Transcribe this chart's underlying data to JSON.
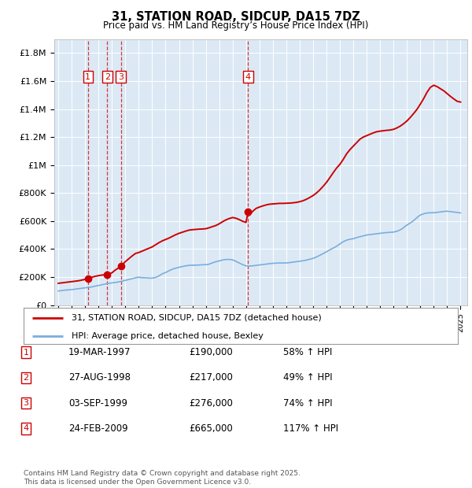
{
  "title": "31, STATION ROAD, SIDCUP, DA15 7DZ",
  "subtitle": "Price paid vs. HM Land Registry’s House Price Index (HPI)",
  "plot_background": "#dce9f5",
  "hpi_line_color": "#7aaedc",
  "price_line_color": "#cc0000",
  "transaction_dates": [
    1997.21,
    1998.65,
    1999.67,
    2009.15
  ],
  "transaction_prices": [
    190000,
    217000,
    276000,
    665000
  ],
  "transaction_labels": [
    "1",
    "2",
    "3",
    "4"
  ],
  "legend_entry1": "31, STATION ROAD, SIDCUP, DA15 7DZ (detached house)",
  "legend_entry2": "HPI: Average price, detached house, Bexley",
  "table_rows": [
    [
      "1",
      "19-MAR-1997",
      "£190,000",
      "58% ↑ HPI"
    ],
    [
      "2",
      "27-AUG-1998",
      "£217,000",
      "49% ↑ HPI"
    ],
    [
      "3",
      "03-SEP-1999",
      "£276,000",
      "74% ↑ HPI"
    ],
    [
      "4",
      "24-FEB-2009",
      "£665,000",
      "117% ↑ HPI"
    ]
  ],
  "footnote": "Contains HM Land Registry data © Crown copyright and database right 2025.\nThis data is licensed under the Open Government Licence v3.0.",
  "ylim": [
    0,
    1900000
  ],
  "yticks": [
    0,
    200000,
    400000,
    600000,
    800000,
    1000000,
    1200000,
    1400000,
    1600000,
    1800000
  ],
  "ytick_labels": [
    "£0",
    "£200K",
    "£400K",
    "£600K",
    "£800K",
    "£1M",
    "£1.2M",
    "£1.4M",
    "£1.6M",
    "£1.8M"
  ],
  "hpi_x": [
    1995.0,
    1995.08,
    1995.17,
    1995.25,
    1995.33,
    1995.42,
    1995.5,
    1995.58,
    1995.67,
    1995.75,
    1995.83,
    1995.92,
    1996.0,
    1996.08,
    1996.17,
    1996.25,
    1996.33,
    1996.42,
    1996.5,
    1996.58,
    1996.67,
    1996.75,
    1996.83,
    1996.92,
    1997.0,
    1997.08,
    1997.17,
    1997.25,
    1997.33,
    1997.42,
    1997.5,
    1997.58,
    1997.67,
    1997.75,
    1997.83,
    1997.92,
    1998.0,
    1998.08,
    1998.17,
    1998.25,
    1998.33,
    1998.42,
    1998.5,
    1998.58,
    1998.67,
    1998.75,
    1998.83,
    1998.92,
    1999.0,
    1999.08,
    1999.17,
    1999.25,
    1999.33,
    1999.42,
    1999.5,
    1999.58,
    1999.67,
    1999.75,
    1999.83,
    1999.92,
    2000.0,
    2000.08,
    2000.17,
    2000.25,
    2000.33,
    2000.42,
    2000.5,
    2000.58,
    2000.67,
    2000.75,
    2000.83,
    2000.92,
    2001.0,
    2001.08,
    2001.17,
    2001.25,
    2001.33,
    2001.42,
    2001.5,
    2001.58,
    2001.67,
    2001.75,
    2001.83,
    2001.92,
    2002.0,
    2002.08,
    2002.17,
    2002.25,
    2002.33,
    2002.42,
    2002.5,
    2002.58,
    2002.67,
    2002.75,
    2002.83,
    2002.92,
    2003.0,
    2003.08,
    2003.17,
    2003.25,
    2003.33,
    2003.42,
    2003.5,
    2003.58,
    2003.67,
    2003.75,
    2003.83,
    2003.92,
    2004.0,
    2004.08,
    2004.17,
    2004.25,
    2004.33,
    2004.42,
    2004.5,
    2004.58,
    2004.67,
    2004.75,
    2004.83,
    2004.92,
    2005.0,
    2005.08,
    2005.17,
    2005.25,
    2005.33,
    2005.42,
    2005.5,
    2005.58,
    2005.67,
    2005.75,
    2005.83,
    2005.92,
    2006.0,
    2006.08,
    2006.17,
    2006.25,
    2006.33,
    2006.42,
    2006.5,
    2006.58,
    2006.67,
    2006.75,
    2006.83,
    2006.92,
    2007.0,
    2007.08,
    2007.17,
    2007.25,
    2007.33,
    2007.42,
    2007.5,
    2007.58,
    2007.67,
    2007.75,
    2007.83,
    2007.92,
    2008.0,
    2008.08,
    2008.17,
    2008.25,
    2008.33,
    2008.42,
    2008.5,
    2008.58,
    2008.67,
    2008.75,
    2008.83,
    2008.92,
    2009.0,
    2009.08,
    2009.17,
    2009.25,
    2009.33,
    2009.42,
    2009.5,
    2009.58,
    2009.67,
    2009.75,
    2009.83,
    2009.92,
    2010.0,
    2010.08,
    2010.17,
    2010.25,
    2010.33,
    2010.42,
    2010.5,
    2010.58,
    2010.67,
    2010.75,
    2010.83,
    2010.92,
    2011.0,
    2011.08,
    2011.17,
    2011.25,
    2011.33,
    2011.42,
    2011.5,
    2011.58,
    2011.67,
    2011.75,
    2011.83,
    2011.92,
    2012.0,
    2012.08,
    2012.17,
    2012.25,
    2012.33,
    2012.42,
    2012.5,
    2012.58,
    2012.67,
    2012.75,
    2012.83,
    2012.92,
    2013.0,
    2013.08,
    2013.17,
    2013.25,
    2013.33,
    2013.42,
    2013.5,
    2013.58,
    2013.67,
    2013.75,
    2013.83,
    2013.92,
    2014.0,
    2014.08,
    2014.17,
    2014.25,
    2014.33,
    2014.42,
    2014.5,
    2014.58,
    2014.67,
    2014.75,
    2014.83,
    2014.92,
    2015.0,
    2015.08,
    2015.17,
    2015.25,
    2015.33,
    2015.42,
    2015.5,
    2015.58,
    2015.67,
    2015.75,
    2015.83,
    2015.92,
    2016.0,
    2016.08,
    2016.17,
    2016.25,
    2016.33,
    2016.42,
    2016.5,
    2016.58,
    2016.67,
    2016.75,
    2016.83,
    2016.92,
    2017.0,
    2017.08,
    2017.17,
    2017.25,
    2017.33,
    2017.42,
    2017.5,
    2017.58,
    2017.67,
    2017.75,
    2017.83,
    2017.92,
    2018.0,
    2018.08,
    2018.17,
    2018.25,
    2018.33,
    2018.42,
    2018.5,
    2018.58,
    2018.67,
    2018.75,
    2018.83,
    2018.92,
    2019.0,
    2019.08,
    2019.17,
    2019.25,
    2019.33,
    2019.42,
    2019.5,
    2019.58,
    2019.67,
    2019.75,
    2019.83,
    2019.92,
    2020.0,
    2020.08,
    2020.17,
    2020.25,
    2020.33,
    2020.42,
    2020.5,
    2020.58,
    2020.67,
    2020.75,
    2020.83,
    2020.92,
    2021.0,
    2021.08,
    2021.17,
    2021.25,
    2021.33,
    2021.42,
    2021.5,
    2021.58,
    2021.67,
    2021.75,
    2021.83,
    2021.92,
    2022.0,
    2022.08,
    2022.17,
    2022.25,
    2022.33,
    2022.42,
    2022.5,
    2022.58,
    2022.67,
    2022.75,
    2022.83,
    2022.92,
    2023.0,
    2023.08,
    2023.17,
    2023.25,
    2023.33,
    2023.42,
    2023.5,
    2023.58,
    2023.67,
    2023.75,
    2023.83,
    2023.92,
    2024.0,
    2024.08,
    2024.17,
    2024.25,
    2024.33,
    2024.42,
    2024.5,
    2024.58,
    2024.67,
    2024.75,
    2024.83,
    2024.92,
    2025.0
  ],
  "hpi_y": [
    100000,
    101000,
    102000,
    103000,
    104000,
    105000,
    106000,
    107000,
    107500,
    108000,
    108500,
    109000,
    110000,
    111000,
    112000,
    113000,
    114000,
    115000,
    116000,
    117000,
    118000,
    119000,
    120000,
    121000,
    122000,
    123000,
    124000,
    125000,
    126500,
    128000,
    129500,
    131000,
    132500,
    134000,
    135500,
    137000,
    139000,
    141000,
    143000,
    145000,
    147000,
    148500,
    150000,
    151500,
    153000,
    154500,
    156000,
    157000,
    158000,
    159000,
    160000,
    161000,
    162000,
    163500,
    165000,
    166500,
    168000,
    170000,
    172000,
    174000,
    176000,
    178000,
    180000,
    182000,
    184000,
    186000,
    188000,
    190000,
    192000,
    194000,
    196000,
    198000,
    198000,
    197000,
    196000,
    195500,
    195000,
    194500,
    194000,
    193500,
    193000,
    192500,
    192000,
    191500,
    192000,
    193000,
    195000,
    197000,
    200000,
    204000,
    208000,
    213000,
    218000,
    222000,
    226000,
    229000,
    232000,
    236000,
    240000,
    244000,
    248000,
    252000,
    255000,
    258000,
    261000,
    263000,
    265000,
    267000,
    269000,
    271000,
    273000,
    275000,
    277000,
    278500,
    280000,
    281500,
    283000,
    283500,
    284000,
    284000,
    284000,
    284000,
    284000,
    284500,
    285000,
    285500,
    286000,
    286500,
    287000,
    287500,
    288000,
    288000,
    288000,
    289000,
    290000,
    292000,
    295000,
    298000,
    301000,
    304000,
    307000,
    309000,
    311000,
    313000,
    315000,
    317000,
    319000,
    321000,
    323000,
    324000,
    325000,
    325500,
    326000,
    325500,
    325000,
    324000,
    322000,
    319000,
    316000,
    312000,
    308000,
    304000,
    300000,
    296000,
    292000,
    288000,
    285000,
    282000,
    280000,
    279000,
    278000,
    278000,
    278500,
    279000,
    280000,
    281000,
    282000,
    283000,
    284000,
    285000,
    286000,
    287000,
    288000,
    289000,
    290000,
    291000,
    292000,
    293000,
    294000,
    295000,
    296000,
    297000,
    298000,
    298500,
    299000,
    299500,
    300000,
    300000,
    300000,
    300000,
    300000,
    300000,
    300000,
    300000,
    300500,
    301000,
    302000,
    303000,
    304000,
    305000,
    306000,
    307000,
    308000,
    309000,
    310000,
    311000,
    312000,
    313000,
    314000,
    315000,
    317000,
    319000,
    321000,
    323000,
    325000,
    327000,
    329000,
    331000,
    333000,
    336000,
    339000,
    343000,
    347000,
    351000,
    355000,
    359000,
    363000,
    367000,
    371000,
    375000,
    380000,
    385000,
    390000,
    394000,
    398000,
    402000,
    406000,
    410000,
    415000,
    420000,
    425000,
    430000,
    436000,
    442000,
    448000,
    452000,
    456000,
    460000,
    463000,
    466000,
    468000,
    470000,
    471000,
    472000,
    474000,
    476000,
    479000,
    482000,
    484000,
    486000,
    488000,
    490000,
    492000,
    494000,
    496000,
    498000,
    500000,
    501000,
    502000,
    503000,
    504000,
    505000,
    506000,
    507000,
    508000,
    509000,
    510000,
    511000,
    512000,
    513000,
    514000,
    515000,
    516000,
    517000,
    517500,
    518000,
    518500,
    519000,
    519500,
    520000,
    521000,
    523000,
    525000,
    527000,
    530000,
    533000,
    537000,
    541000,
    547000,
    553000,
    559000,
    565000,
    571000,
    576000,
    581000,
    586000,
    591000,
    597000,
    603000,
    610000,
    617000,
    624000,
    631000,
    638000,
    642000,
    646000,
    649000,
    652000,
    654000,
    656000,
    657000,
    658000,
    658500,
    659000,
    659000,
    659000,
    659500,
    660000,
    661000,
    662000,
    663000,
    664000,
    665000,
    666000,
    667000,
    668000,
    669000,
    670000,
    670000,
    669000,
    668000,
    667000,
    666000,
    665000,
    664000,
    663000,
    662000,
    661000,
    660000,
    659000,
    658000
  ],
  "price_x": [
    1995.0,
    1995.25,
    1995.5,
    1995.75,
    1996.0,
    1996.25,
    1996.5,
    1996.75,
    1997.0,
    1997.21,
    1997.25,
    1997.5,
    1997.75,
    1998.0,
    1998.25,
    1998.5,
    1998.65,
    1998.75,
    1999.0,
    1999.25,
    1999.5,
    1999.67,
    1999.75,
    2000.0,
    2000.25,
    2000.5,
    2000.75,
    2001.0,
    2001.25,
    2001.5,
    2001.75,
    2002.0,
    2002.25,
    2002.5,
    2002.75,
    2003.0,
    2003.25,
    2003.5,
    2003.75,
    2004.0,
    2004.25,
    2004.5,
    2004.75,
    2005.0,
    2005.25,
    2005.5,
    2005.75,
    2006.0,
    2006.25,
    2006.5,
    2006.75,
    2007.0,
    2007.25,
    2007.5,
    2007.75,
    2008.0,
    2008.25,
    2008.5,
    2008.75,
    2009.0,
    2009.15,
    2009.25,
    2009.5,
    2009.75,
    2010.0,
    2010.25,
    2010.5,
    2010.75,
    2011.0,
    2011.25,
    2011.5,
    2011.75,
    2012.0,
    2012.25,
    2012.5,
    2012.75,
    2013.0,
    2013.25,
    2013.5,
    2013.75,
    2014.0,
    2014.25,
    2014.5,
    2014.75,
    2015.0,
    2015.25,
    2015.5,
    2015.75,
    2016.0,
    2016.25,
    2016.5,
    2016.75,
    2017.0,
    2017.25,
    2017.5,
    2017.75,
    2018.0,
    2018.25,
    2018.5,
    2018.75,
    2019.0,
    2019.25,
    2019.5,
    2019.75,
    2020.0,
    2020.25,
    2020.5,
    2020.75,
    2021.0,
    2021.25,
    2021.5,
    2021.75,
    2022.0,
    2022.25,
    2022.5,
    2022.75,
    2023.0,
    2023.25,
    2023.5,
    2023.75,
    2024.0,
    2024.25,
    2024.5,
    2024.75,
    2025.0
  ],
  "price_y": [
    155000,
    158000,
    161000,
    164000,
    167000,
    170000,
    173000,
    178000,
    183000,
    190000,
    192000,
    198000,
    205000,
    210000,
    214000,
    216000,
    217000,
    220000,
    230000,
    250000,
    265000,
    276000,
    285000,
    310000,
    330000,
    350000,
    368000,
    375000,
    385000,
    395000,
    405000,
    415000,
    430000,
    445000,
    458000,
    468000,
    478000,
    490000,
    502000,
    512000,
    520000,
    528000,
    535000,
    538000,
    540000,
    542000,
    543000,
    545000,
    552000,
    560000,
    568000,
    580000,
    595000,
    608000,
    618000,
    625000,
    620000,
    610000,
    598000,
    590000,
    665000,
    640000,
    670000,
    690000,
    700000,
    708000,
    715000,
    720000,
    722000,
    724000,
    726000,
    726000,
    727000,
    728000,
    730000,
    733000,
    738000,
    745000,
    755000,
    768000,
    782000,
    800000,
    822000,
    848000,
    876000,
    910000,
    945000,
    978000,
    1005000,
    1040000,
    1080000,
    1110000,
    1135000,
    1160000,
    1185000,
    1200000,
    1210000,
    1220000,
    1230000,
    1238000,
    1242000,
    1245000,
    1248000,
    1250000,
    1255000,
    1265000,
    1278000,
    1295000,
    1315000,
    1340000,
    1368000,
    1398000,
    1435000,
    1475000,
    1520000,
    1555000,
    1570000,
    1560000,
    1545000,
    1530000,
    1510000,
    1490000,
    1472000,
    1455000,
    1450000
  ],
  "xlim_min": 1994.7,
  "xlim_max": 2025.5
}
